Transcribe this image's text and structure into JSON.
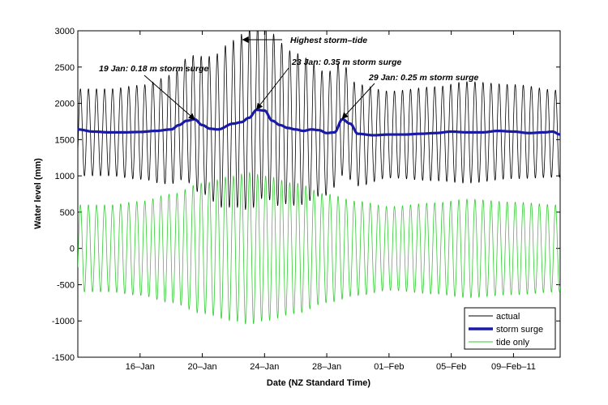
{
  "chart_data": {
    "type": "line",
    "title": "",
    "xlabel": "Date (NZ Standard Time)",
    "ylabel": "Water level (mm)",
    "x_unit": "date",
    "xlim": [
      "2011-01-12",
      "2011-02-12"
    ],
    "ylim": [
      -1500,
      3000
    ],
    "yticks": [
      -1500,
      -1000,
      -500,
      0,
      500,
      1000,
      1500,
      2000,
      2500,
      3000
    ],
    "xticks": [
      {
        "date": "2011-01-16",
        "label": "16–Jan"
      },
      {
        "date": "2011-01-20",
        "label": "20–Jan"
      },
      {
        "date": "2011-01-24",
        "label": "24–Jan"
      },
      {
        "date": "2011-01-28",
        "label": "28–Jan"
      },
      {
        "date": "2011-02-01",
        "label": "01–Feb"
      },
      {
        "date": "2011-02-05",
        "label": "05–Feb"
      },
      {
        "date": "2011-02-09",
        "label": "09–Feb–11"
      }
    ],
    "grid": false,
    "legend_position": "bottom-right",
    "series": [
      {
        "name": "actual",
        "color": "#000000",
        "kind": "oscillating",
        "period_days": 0.5175,
        "phase_date": "2011-01-12T04:00",
        "center": [
          [
            "2011-01-12",
            1600
          ],
          [
            "2011-01-14",
            1600
          ],
          [
            "2011-01-16",
            1600
          ],
          [
            "2011-01-17",
            1610
          ],
          [
            "2011-01-18",
            1640
          ],
          [
            "2011-01-19",
            1780
          ],
          [
            "2011-01-20",
            1700
          ],
          [
            "2011-01-21",
            1640
          ],
          [
            "2011-01-22",
            1720
          ],
          [
            "2011-01-23",
            1780
          ],
          [
            "2011-01-24",
            1900
          ],
          [
            "2011-01-25",
            1720
          ],
          [
            "2011-01-26",
            1640
          ],
          [
            "2011-01-27",
            1620
          ],
          [
            "2011-01-28",
            1580
          ],
          [
            "2011-01-29",
            1780
          ],
          [
            "2011-01-30",
            1560
          ],
          [
            "2011-02-01",
            1570
          ],
          [
            "2011-02-04",
            1580
          ],
          [
            "2011-02-06",
            1600
          ],
          [
            "2011-02-09",
            1610
          ],
          [
            "2011-02-12",
            1580
          ]
        ],
        "amplitude": [
          [
            "2011-01-12",
            600
          ],
          [
            "2011-01-14",
            600
          ],
          [
            "2011-01-16",
            650
          ],
          [
            "2011-01-18",
            750
          ],
          [
            "2011-01-20",
            950
          ],
          [
            "2011-01-22",
            1150
          ],
          [
            "2011-01-23",
            1250
          ],
          [
            "2011-01-24",
            1200
          ],
          [
            "2011-01-26",
            1050
          ],
          [
            "2011-01-28",
            850
          ],
          [
            "2011-01-30",
            700
          ],
          [
            "2011-02-01",
            600
          ],
          [
            "2011-02-04",
            650
          ],
          [
            "2011-02-06",
            700
          ],
          [
            "2011-02-09",
            650
          ],
          [
            "2011-02-12",
            600
          ]
        ]
      },
      {
        "name": "storm surge",
        "color": "#1a1aa8",
        "kind": "smooth",
        "points": [
          [
            "2011-01-12",
            1640
          ],
          [
            "2011-01-13",
            1610
          ],
          [
            "2011-01-14",
            1600
          ],
          [
            "2011-01-15",
            1600
          ],
          [
            "2011-01-16",
            1605
          ],
          [
            "2011-01-17",
            1620
          ],
          [
            "2011-01-18",
            1640
          ],
          [
            "2011-01-18T12:00",
            1700
          ],
          [
            "2011-01-19",
            1760
          ],
          [
            "2011-01-19T12:00",
            1780
          ],
          [
            "2011-01-20",
            1700
          ],
          [
            "2011-01-20T12:00",
            1650
          ],
          [
            "2011-01-21",
            1640
          ],
          [
            "2011-01-22",
            1720
          ],
          [
            "2011-01-22T12:00",
            1740
          ],
          [
            "2011-01-23",
            1800
          ],
          [
            "2011-01-23T12:00",
            1910
          ],
          [
            "2011-01-24",
            1900
          ],
          [
            "2011-01-24T12:00",
            1760
          ],
          [
            "2011-01-25",
            1700
          ],
          [
            "2011-01-25T12:00",
            1660
          ],
          [
            "2011-01-26",
            1640
          ],
          [
            "2011-01-26T12:00",
            1620
          ],
          [
            "2011-01-27",
            1640
          ],
          [
            "2011-01-27T12:00",
            1630
          ],
          [
            "2011-01-28",
            1590
          ],
          [
            "2011-01-28T12:00",
            1600
          ],
          [
            "2011-01-29",
            1780
          ],
          [
            "2011-01-29T12:00",
            1720
          ],
          [
            "2011-01-30",
            1580
          ],
          [
            "2011-01-31",
            1560
          ],
          [
            "2011-02-01",
            1570
          ],
          [
            "2011-02-02",
            1570
          ],
          [
            "2011-02-03",
            1580
          ],
          [
            "2011-02-04",
            1590
          ],
          [
            "2011-02-05",
            1610
          ],
          [
            "2011-02-06",
            1600
          ],
          [
            "2011-02-07",
            1600
          ],
          [
            "2011-02-08",
            1620
          ],
          [
            "2011-02-09",
            1610
          ],
          [
            "2011-02-10",
            1590
          ],
          [
            "2011-02-11",
            1600
          ],
          [
            "2011-02-11T12:00",
            1610
          ],
          [
            "2011-02-12",
            1570
          ]
        ]
      },
      {
        "name": "tide only",
        "color": "#33cc33",
        "kind": "oscillating",
        "period_days": 0.5175,
        "phase_date": "2011-01-12T04:00",
        "center": [
          [
            "2011-01-12",
            0
          ],
          [
            "2011-02-12",
            0
          ]
        ],
        "amplitude": [
          [
            "2011-01-12",
            600
          ],
          [
            "2011-01-14",
            600
          ],
          [
            "2011-01-16",
            650
          ],
          [
            "2011-01-18",
            750
          ],
          [
            "2011-01-20",
            900
          ],
          [
            "2011-01-22",
            1000
          ],
          [
            "2011-01-23",
            1050
          ],
          [
            "2011-01-24",
            1000
          ],
          [
            "2011-01-26",
            900
          ],
          [
            "2011-01-28",
            750
          ],
          [
            "2011-01-30",
            650
          ],
          [
            "2011-02-01",
            580
          ],
          [
            "2011-02-04",
            630
          ],
          [
            "2011-02-06",
            680
          ],
          [
            "2011-02-09",
            640
          ],
          [
            "2011-02-12",
            600
          ]
        ]
      }
    ],
    "annotations": [
      {
        "text": "Highest storm–tide",
        "target": [
          "2011-01-22T12:00",
          3000
        ]
      },
      {
        "text": "19 Jan: 0.18 m storm surge",
        "target": [
          "2011-01-19T12:00",
          1780
        ]
      },
      {
        "text": "23 Jan: 0.35 m storm surge",
        "target": [
          "2011-01-23T12:00",
          1920
        ]
      },
      {
        "text": "29 Jan: 0.25 m storm surge",
        "target": [
          "2011-01-29",
          1790
        ]
      }
    ]
  }
}
